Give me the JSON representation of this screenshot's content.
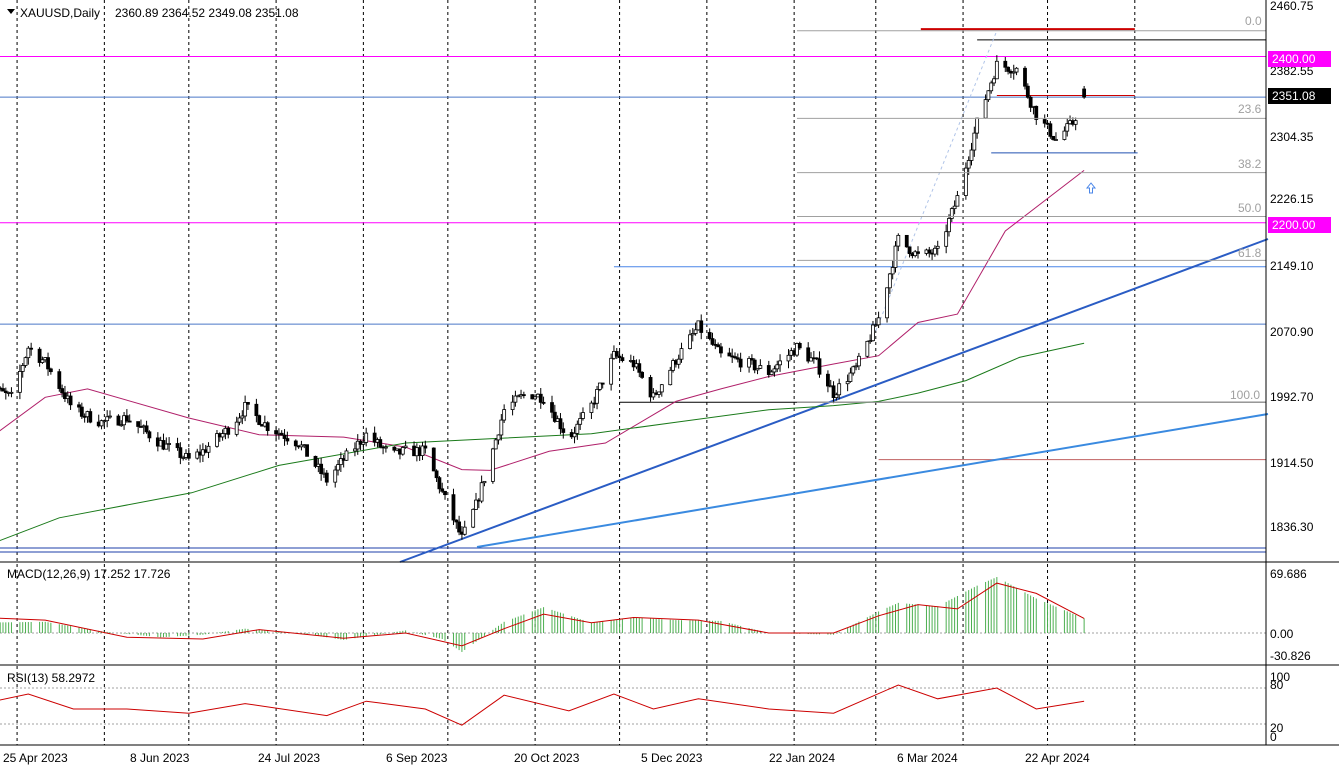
{
  "header": {
    "symbol": "XAUUSD,Daily",
    "ohlc": "2360.89 2364.52 2349.08 2351.08"
  },
  "price_axis": {
    "ticks": [
      "2460.75",
      "2382.55",
      "2304.35",
      "2226.15",
      "2149.10",
      "2070.90",
      "1992.70",
      "1914.50",
      "1836.30"
    ],
    "current_price": "2351.08",
    "level_2400": "2400.00",
    "level_2200": "2200.00",
    "current_bg": "#000000",
    "level_bg": "#ff00ff"
  },
  "fib_labels": [
    "0.0",
    "23.6",
    "38.2",
    "50.0",
    "61.8",
    "100.0"
  ],
  "date_axis": {
    "ticks": [
      "25 Apr 2023",
      "8 Jun 2023",
      "24 Jul 2023",
      "6 Sep 2023",
      "20 Oct 2023",
      "5 Dec 2023",
      "22 Jan 2024",
      "6 Mar 2024",
      "22 Apr 2024"
    ]
  },
  "macd_panel": {
    "label": "MACD(12,26,9) 17.252 17.726",
    "ticks": [
      "69.686",
      "0.00",
      "-30.826"
    ]
  },
  "rsi_panel": {
    "label": "RSI(13) 58.2972",
    "ticks": [
      "100",
      "80",
      "20",
      "0"
    ]
  },
  "chart_data": {
    "type": "candlestick",
    "instrument": "XAUUSD",
    "timeframe": "Daily",
    "last_ohlc": {
      "open": 2360.89,
      "high": 2364.52,
      "low": 2349.08,
      "close": 2351.08
    },
    "ylim": [
      1800,
      2470
    ],
    "x_range": [
      "2023-04-18",
      "2024-06-10"
    ],
    "price_path": [
      [
        "2023-04-18",
        2005
      ],
      [
        "2023-04-28",
        1990
      ],
      [
        "2023-05-04",
        2050
      ],
      [
        "2023-05-10",
        2032
      ],
      [
        "2023-05-20",
        1975
      ],
      [
        "2023-05-30",
        1960
      ],
      [
        "2023-06-08",
        1965
      ],
      [
        "2023-06-20",
        1935
      ],
      [
        "2023-06-30",
        1915
      ],
      [
        "2023-07-05",
        1925
      ],
      [
        "2023-07-15",
        1955
      ],
      [
        "2023-07-20",
        1978
      ],
      [
        "2023-07-28",
        1955
      ],
      [
        "2023-08-08",
        1935
      ],
      [
        "2023-08-18",
        1890
      ],
      [
        "2023-08-24",
        1915
      ],
      [
        "2023-09-01",
        1945
      ],
      [
        "2023-09-10",
        1920
      ],
      [
        "2023-09-15",
        1925
      ],
      [
        "2023-09-22",
        1925
      ],
      [
        "2023-09-28",
        1875
      ],
      [
        "2023-10-05",
        1820
      ],
      [
        "2023-10-10",
        1860
      ],
      [
        "2023-10-15",
        1915
      ],
      [
        "2023-10-20",
        1975
      ],
      [
        "2023-10-28",
        1995
      ],
      [
        "2023-11-03",
        1990
      ],
      [
        "2023-11-12",
        1940
      ],
      [
        "2023-11-20",
        1980
      ],
      [
        "2023-11-28",
        2040
      ],
      [
        "2023-12-05",
        2030
      ],
      [
        "2023-12-12",
        1990
      ],
      [
        "2023-12-20",
        2035
      ],
      [
        "2023-12-28",
        2075
      ],
      [
        "2024-01-05",
        2040
      ],
      [
        "2024-01-15",
        2030
      ],
      [
        "2024-01-22",
        2020
      ],
      [
        "2024-02-01",
        2050
      ],
      [
        "2024-02-08",
        2030
      ],
      [
        "2024-02-14",
        1995
      ],
      [
        "2024-02-22",
        2025
      ],
      [
        "2024-03-01",
        2085
      ],
      [
        "2024-03-08",
        2180
      ],
      [
        "2024-03-15",
        2160
      ],
      [
        "2024-03-22",
        2165
      ],
      [
        "2024-03-29",
        2230
      ],
      [
        "2024-04-05",
        2320
      ],
      [
        "2024-04-12",
        2390
      ],
      [
        "2024-04-19",
        2385
      ],
      [
        "2024-04-26",
        2330
      ],
      [
        "2024-05-03",
        2300
      ],
      [
        "2024-05-09",
        2320
      ],
      [
        "2024-05-13",
        2351
      ]
    ],
    "series": [
      {
        "name": "MA(50)",
        "points": [
          [
            "2023-04-18",
            1935
          ],
          [
            "2023-05-10",
            1990
          ],
          [
            "2023-05-25",
            2000
          ],
          [
            "2023-06-30",
            1965
          ],
          [
            "2023-07-25",
            1945
          ],
          [
            "2023-08-24",
            1942
          ],
          [
            "2023-09-15",
            1930
          ],
          [
            "2023-10-05",
            1903
          ],
          [
            "2023-10-15",
            1902
          ],
          [
            "2023-11-05",
            1925
          ],
          [
            "2023-11-25",
            1935
          ],
          [
            "2023-12-20",
            1985
          ],
          [
            "2024-01-05",
            2000
          ],
          [
            "2024-01-22",
            2015
          ],
          [
            "2024-02-14",
            2030
          ],
          [
            "2024-03-01",
            2040
          ],
          [
            "2024-03-15",
            2080
          ],
          [
            "2024-03-29",
            2090
          ],
          [
            "2024-04-15",
            2190
          ],
          [
            "2024-05-13",
            2263
          ]
        ]
      },
      {
        "name": "MA(200)",
        "points": [
          [
            "2023-04-18",
            1810
          ],
          [
            "2023-05-15",
            1845
          ],
          [
            "2023-07-01",
            1875
          ],
          [
            "2023-08-01",
            1908
          ],
          [
            "2023-09-15",
            1935
          ],
          [
            "2023-10-15",
            1940
          ],
          [
            "2023-11-20",
            1946
          ],
          [
            "2023-12-20",
            1960
          ],
          [
            "2024-01-22",
            1975
          ],
          [
            "2024-02-14",
            1980
          ],
          [
            "2024-03-01",
            1985
          ],
          [
            "2024-03-15",
            1995
          ],
          [
            "2024-04-01",
            2010
          ],
          [
            "2024-04-20",
            2038
          ],
          [
            "2024-05-13",
            2055
          ]
        ]
      }
    ],
    "horizontal_levels": [
      2400.0,
      2200.0,
      2351.08,
      2078,
      2147,
      1915
    ],
    "fibonacci": {
      "levels": [
        0.0,
        23.6,
        38.2,
        50.0,
        61.8,
        100.0
      ],
      "from": 1984,
      "to": 2431
    },
    "macd": {
      "signal_value": 17.252,
      "macd_value": 17.726,
      "ylim": [
        -30.826,
        69.686
      ],
      "histogram": [
        [
          "2023-04-18",
          12
        ],
        [
          "2023-05-10",
          13
        ],
        [
          "2023-05-30",
          2
        ],
        [
          "2023-06-20",
          -5
        ],
        [
          "2023-07-05",
          -2
        ],
        [
          "2023-07-20",
          5
        ],
        [
          "2023-08-08",
          0
        ],
        [
          "2023-08-24",
          -8
        ],
        [
          "2023-09-15",
          3
        ],
        [
          "2023-09-28",
          -7
        ],
        [
          "2023-10-05",
          -22
        ],
        [
          "2023-10-20",
          13
        ],
        [
          "2023-11-03",
          30
        ],
        [
          "2023-11-20",
          12
        ],
        [
          "2023-12-05",
          18
        ],
        [
          "2023-12-20",
          15
        ],
        [
          "2024-01-05",
          14
        ],
        [
          "2024-01-22",
          0
        ],
        [
          "2024-02-14",
          -2
        ],
        [
          "2024-03-01",
          25
        ],
        [
          "2024-03-08",
          35
        ],
        [
          "2024-03-22",
          31
        ],
        [
          "2024-04-05",
          55
        ],
        [
          "2024-04-12",
          65
        ],
        [
          "2024-04-26",
          40
        ],
        [
          "2024-05-13",
          17
        ]
      ],
      "signal": [
        [
          "2023-04-18",
          18
        ],
        [
          "2023-05-10",
          15
        ],
        [
          "2023-06-08",
          -5
        ],
        [
          "2023-07-05",
          -7
        ],
        [
          "2023-07-25",
          4
        ],
        [
          "2023-08-24",
          -6
        ],
        [
          "2023-09-15",
          0
        ],
        [
          "2023-10-05",
          -15
        ],
        [
          "2023-10-20",
          5
        ],
        [
          "2023-11-03",
          22
        ],
        [
          "2023-11-20",
          12
        ],
        [
          "2023-12-05",
          18
        ],
        [
          "2023-12-28",
          15
        ],
        [
          "2024-01-22",
          0
        ],
        [
          "2024-02-14",
          0
        ],
        [
          "2024-03-01",
          20
        ],
        [
          "2024-03-15",
          33
        ],
        [
          "2024-03-29",
          28
        ],
        [
          "2024-04-12",
          58
        ],
        [
          "2024-04-26",
          46
        ],
        [
          "2024-05-13",
          17
        ]
      ]
    },
    "rsi": {
      "value": 58.2972,
      "levels": [
        80,
        20
      ],
      "points": [
        [
          "2023-04-18",
          54
        ],
        [
          "2023-05-04",
          70
        ],
        [
          "2023-05-20",
          45
        ],
        [
          "2023-06-08",
          45
        ],
        [
          "2023-06-30",
          38
        ],
        [
          "2023-07-20",
          54
        ],
        [
          "2023-08-18",
          34
        ],
        [
          "2023-09-01",
          58
        ],
        [
          "2023-09-22",
          45
        ],
        [
          "2023-10-05",
          18
        ],
        [
          "2023-10-20",
          68
        ],
        [
          "2023-11-12",
          42
        ],
        [
          "2023-11-28",
          70
        ],
        [
          "2023-12-12",
          45
        ],
        [
          "2023-12-28",
          62
        ],
        [
          "2024-01-22",
          45
        ],
        [
          "2024-02-14",
          38
        ],
        [
          "2024-03-08",
          85
        ],
        [
          "2024-03-22",
          62
        ],
        [
          "2024-04-12",
          80
        ],
        [
          "2024-04-26",
          45
        ],
        [
          "2024-05-13",
          58
        ]
      ]
    }
  }
}
